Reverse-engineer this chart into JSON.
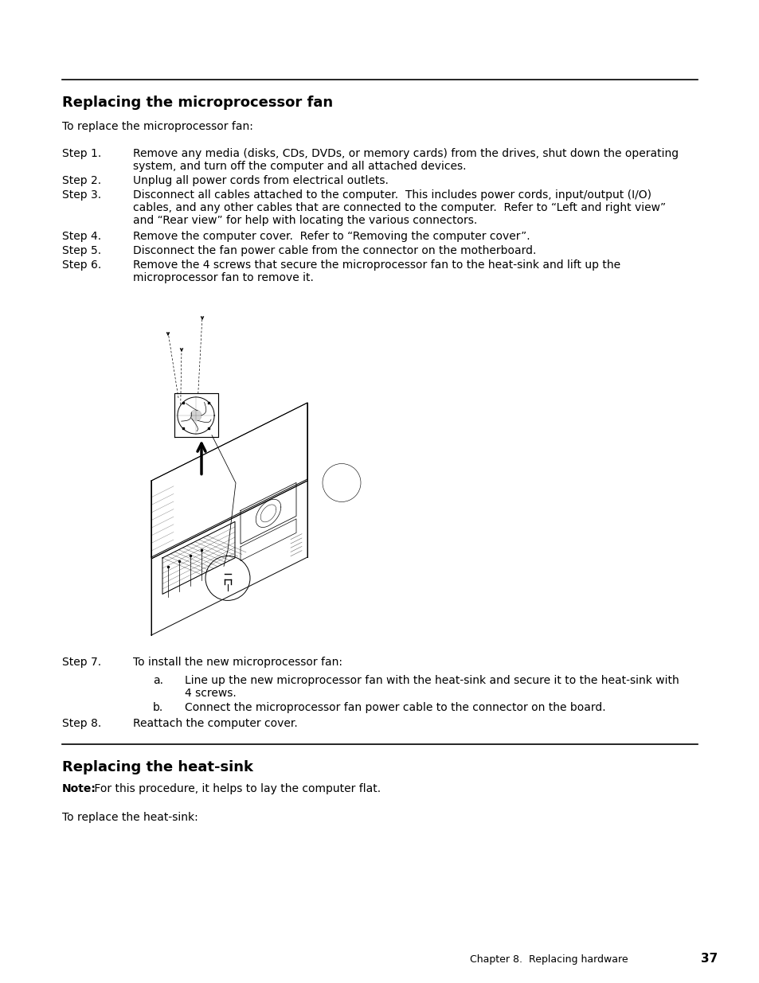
{
  "title1": "Replacing the microprocessor fan",
  "title2": "Replacing the heat-sink",
  "intro1": "To replace the microprocessor fan:",
  "intro2": "To replace the heat-sink:",
  "steps": [
    {
      "label": "Step 1.",
      "text": "Remove any media (disks, CDs, DVDs, or memory cards) from the drives, shut down the operating\nsystem, and turn off the computer and all attached devices."
    },
    {
      "label": "Step 2.",
      "text": "Unplug all power cords from electrical outlets."
    },
    {
      "label": "Step 3.",
      "text": "Disconnect all cables attached to the computer.  This includes power cords, input/output (I/O)\ncables, and any other cables that are connected to the computer.  Refer to “Left and right view”\nand “Rear view” for help with locating the various connectors."
    },
    {
      "label": "Step 4.",
      "text": "Remove the computer cover.  Refer to “Removing the computer cover”."
    },
    {
      "label": "Step 5.",
      "text": "Disconnect the fan power cable from the connector on the motherboard."
    },
    {
      "label": "Step 6.",
      "text": "Remove the 4 screws that secure the microprocessor fan to the heat-sink and lift up the\nmicroprocessor fan to remove it."
    }
  ],
  "step7": {
    "label": "Step 7.",
    "text": "To install the new microprocessor fan:"
  },
  "sub_steps": [
    {
      "label": "a.",
      "text": "Line up the new microprocessor fan with the heat-sink and secure it to the heat-sink with\n4 screws."
    },
    {
      "label": "b.",
      "text": "Connect the microprocessor fan power cable to the connector on the board."
    }
  ],
  "step8": {
    "label": "Step 8.",
    "text": "Reattach the computer cover."
  },
  "note_label": "Note:",
  "note_text": " For this procedure, it helps to lay the computer flat.",
  "footer": "Chapter 8.  Replacing hardware",
  "page_num": "37",
  "bg_color": "#ffffff",
  "text_color": "#000000",
  "title_fontsize": 13,
  "body_fontsize": 10
}
